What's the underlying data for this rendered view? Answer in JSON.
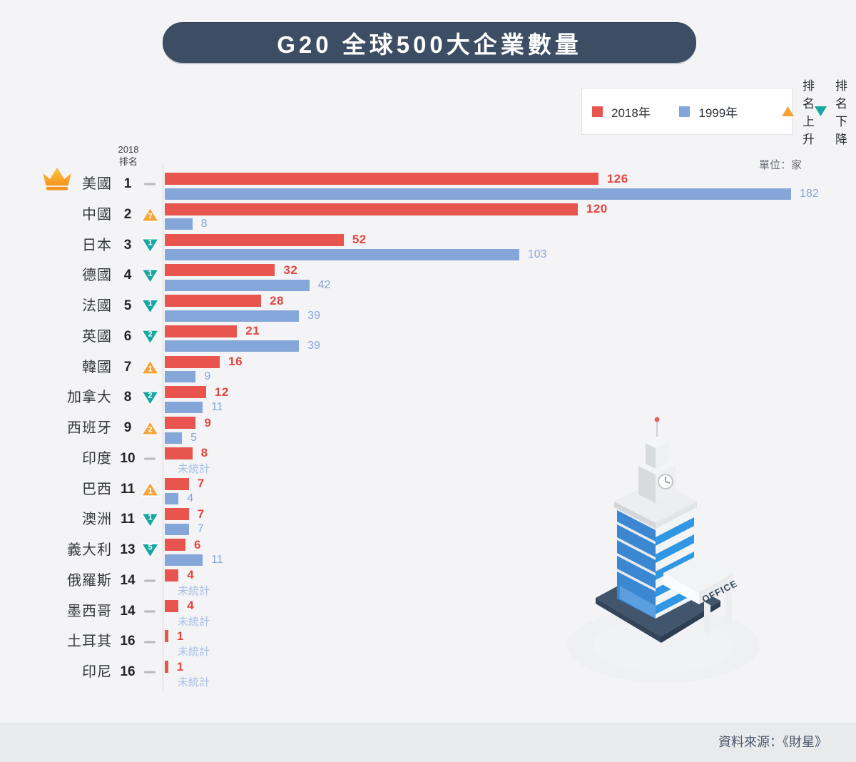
{
  "title": "G20 全球500大企業數量",
  "unit_label": "單位：家",
  "rank_header": {
    "line1": "2018",
    "line2": "排名"
  },
  "legend": {
    "items": [
      {
        "label": "2018年",
        "swatch": "square",
        "color": "#e8544e"
      },
      {
        "label": "1999年",
        "swatch": "square",
        "color": "#85a6d9"
      },
      {
        "label": "排名上升",
        "swatch": "triangle-up",
        "color": "#f5a43a"
      },
      {
        "label": "排名下降",
        "swatch": "triangle-down",
        "color": "#17a7a3"
      }
    ]
  },
  "not_counted_label": "未統計",
  "building": {
    "sign": "OFFICE"
  },
  "footer": {
    "source": "資料來源：《財星》"
  },
  "colors": {
    "background": "#f4f4f6",
    "banner": "#3d4e64",
    "bar_2018": "#e8544e",
    "bar_1999": "#85a6d9",
    "rank_up": "#f5a43a",
    "rank_down": "#17a7a3",
    "footer_bg": "#e9eaec"
  },
  "chart_data": {
    "type": "bar",
    "orientation": "horizontal",
    "title": "G20 全球500大企業數量",
    "unit": "家",
    "series_names": [
      "2018年",
      "1999年"
    ],
    "max_value": 182,
    "legend_position": "top-right",
    "rows": [
      {
        "country": "美國",
        "rank": 1,
        "rank_change": "same",
        "change_amount": null,
        "crown": true,
        "v2018": 126,
        "v1999": 182
      },
      {
        "country": "中國",
        "rank": 2,
        "rank_change": "up",
        "change_amount": 7,
        "crown": false,
        "v2018": 120,
        "v1999": 8
      },
      {
        "country": "日本",
        "rank": 3,
        "rank_change": "down",
        "change_amount": 1,
        "crown": false,
        "v2018": 52,
        "v1999": 103
      },
      {
        "country": "德國",
        "rank": 4,
        "rank_change": "down",
        "change_amount": 1,
        "crown": false,
        "v2018": 32,
        "v1999": 42
      },
      {
        "country": "法國",
        "rank": 5,
        "rank_change": "down",
        "change_amount": 1,
        "crown": false,
        "v2018": 28,
        "v1999": 39
      },
      {
        "country": "英國",
        "rank": 6,
        "rank_change": "down",
        "change_amount": 2,
        "crown": false,
        "v2018": 21,
        "v1999": 39
      },
      {
        "country": "韓國",
        "rank": 7,
        "rank_change": "up",
        "change_amount": 1,
        "crown": false,
        "v2018": 16,
        "v1999": 9
      },
      {
        "country": "加拿大",
        "rank": 8,
        "rank_change": "down",
        "change_amount": 2,
        "crown": false,
        "v2018": 12,
        "v1999": 11
      },
      {
        "country": "西班牙",
        "rank": 9,
        "rank_change": "up",
        "change_amount": 2,
        "crown": false,
        "v2018": 9,
        "v1999": 5
      },
      {
        "country": "印度",
        "rank": 10,
        "rank_change": "same",
        "change_amount": null,
        "crown": false,
        "v2018": 8,
        "v1999": null
      },
      {
        "country": "巴西",
        "rank": 11,
        "rank_change": "up",
        "change_amount": 1,
        "crown": false,
        "v2018": 7,
        "v1999": 4
      },
      {
        "country": "澳洲",
        "rank": 11,
        "rank_change": "down",
        "change_amount": 1,
        "crown": false,
        "v2018": 7,
        "v1999": 7
      },
      {
        "country": "義大利",
        "rank": 13,
        "rank_change": "down",
        "change_amount": 5,
        "crown": false,
        "v2018": 6,
        "v1999": 11
      },
      {
        "country": "俄羅斯",
        "rank": 14,
        "rank_change": "same",
        "change_amount": null,
        "crown": false,
        "v2018": 4,
        "v1999": null
      },
      {
        "country": "墨西哥",
        "rank": 14,
        "rank_change": "same",
        "change_amount": null,
        "crown": false,
        "v2018": 4,
        "v1999": null
      },
      {
        "country": "土耳其",
        "rank": 16,
        "rank_change": "same",
        "change_amount": null,
        "crown": false,
        "v2018": 1,
        "v1999": null
      },
      {
        "country": "印尼",
        "rank": 16,
        "rank_change": "same",
        "change_amount": null,
        "crown": false,
        "v2018": 1,
        "v1999": null
      }
    ]
  }
}
